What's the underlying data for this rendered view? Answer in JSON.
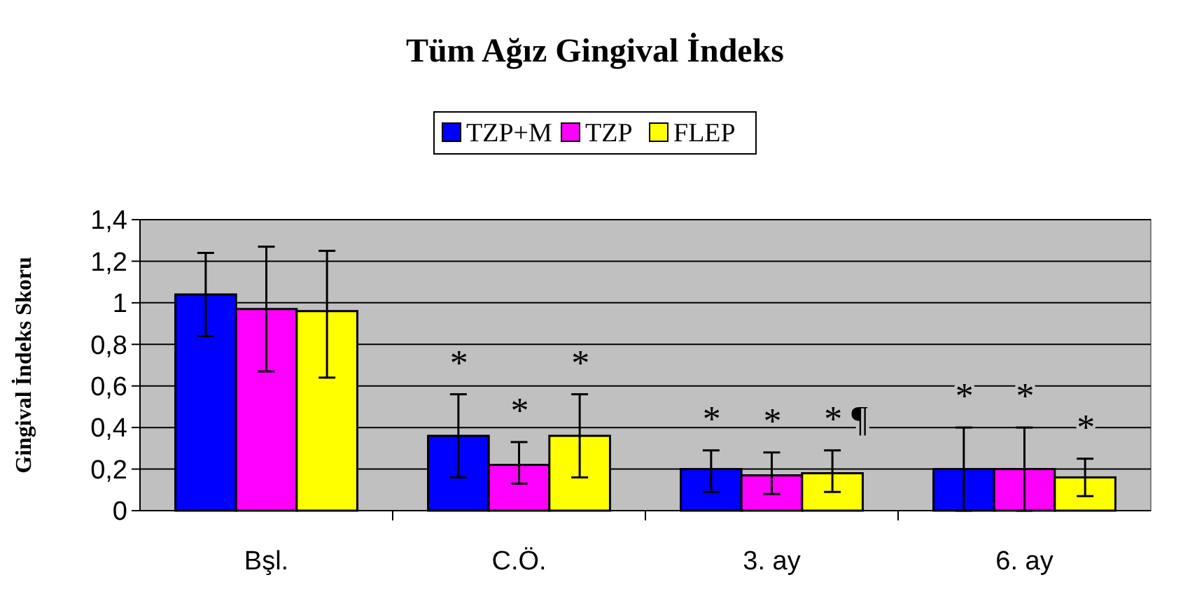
{
  "chart_data": {
    "type": "bar",
    "title": "Tüm Ağız Gingival İndeks",
    "ylabel": "Gingival İndeks Skoru",
    "categories": [
      "Bşl.",
      "C.Ö.",
      "3. ay",
      "6. ay"
    ],
    "series": [
      {
        "name": "TZP+M",
        "color": "#0000ff",
        "values": [
          1.04,
          0.36,
          0.2,
          0.2
        ],
        "errors": [
          [
            0.84,
            1.24
          ],
          [
            0.16,
            0.56
          ],
          [
            0.09,
            0.29
          ],
          [
            0,
            0.4
          ]
        ]
      },
      {
        "name": "TZP",
        "color": "#ff00ff",
        "values": [
          0.97,
          0.22,
          0.17,
          0.2
        ],
        "errors": [
          [
            0.67,
            1.27
          ],
          [
            0.13,
            0.33
          ],
          [
            0.08,
            0.28
          ],
          [
            0,
            0.4
          ]
        ]
      },
      {
        "name": "FLEP",
        "color": "#ffff00",
        "values": [
          0.96,
          0.36,
          0.18,
          0.16
        ],
        "errors": [
          [
            0.64,
            1.25
          ],
          [
            0.16,
            0.56
          ],
          [
            0.09,
            0.29
          ],
          [
            0.07,
            0.25
          ]
        ]
      }
    ],
    "ylim": [
      0,
      1.4
    ],
    "yticks": [
      0,
      {
        "value": 0.2,
        "label": "0,2"
      },
      {
        "value": 0.4,
        "label": "0,4"
      },
      {
        "value": 0.6,
        "label": "0,6"
      },
      {
        "value": 0.8,
        "label": "0,8"
      },
      1,
      {
        "value": 1.2,
        "label": "1,2"
      },
      {
        "value": 1.4,
        "label": "1,4"
      }
    ],
    "grid": "y",
    "legend": "top",
    "annotations": [
      "*",
      "*",
      "*",
      "*",
      "*",
      "* ¶",
      "*",
      "*",
      "*"
    ]
  }
}
